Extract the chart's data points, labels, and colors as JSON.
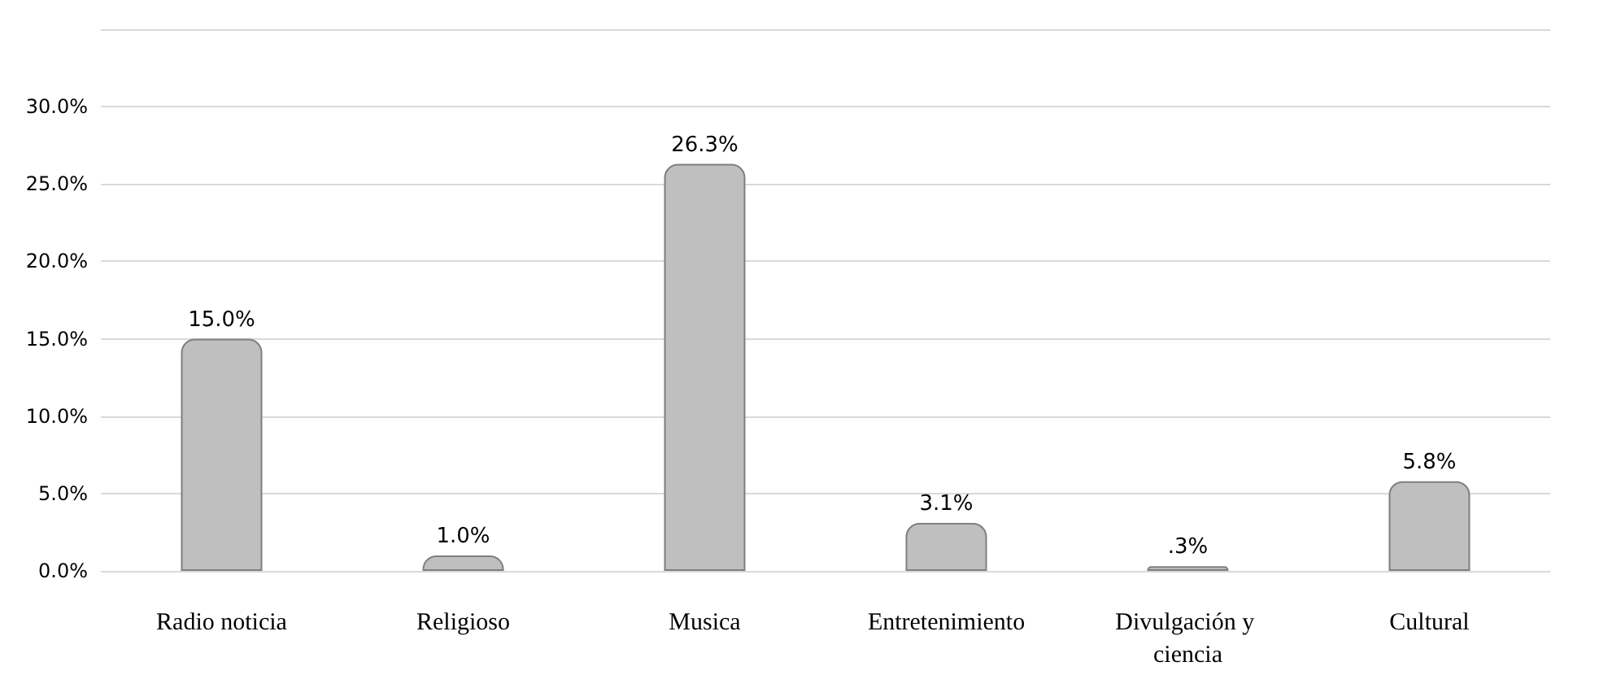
{
  "chart_data": {
    "type": "bar",
    "categories": [
      "Radio noticia",
      "Religioso",
      "Musica",
      "Entretenimiento",
      "Divulgación y ciencia",
      "Cultural"
    ],
    "values": [
      15.0,
      1.0,
      26.3,
      3.1,
      0.3,
      5.8
    ],
    "value_labels": [
      "15.0%",
      "1.0%",
      "26.3%",
      "3.1%",
      ".3%",
      "5.8%"
    ],
    "color": "#bfbfbf",
    "ylim": [
      0,
      35
    ],
    "yticks": [
      {
        "value": 0,
        "label": "0.0%"
      },
      {
        "value": 5,
        "label": "5.0%"
      },
      {
        "value": 10,
        "label": "10.0%"
      },
      {
        "value": 15,
        "label": "15.0%"
      },
      {
        "value": 20,
        "label": "20.0%"
      },
      {
        "value": 25,
        "label": "25.0%"
      },
      {
        "value": 30,
        "label": "30.0%"
      },
      {
        "value": 35,
        "label": null
      }
    ],
    "grid": "y"
  }
}
